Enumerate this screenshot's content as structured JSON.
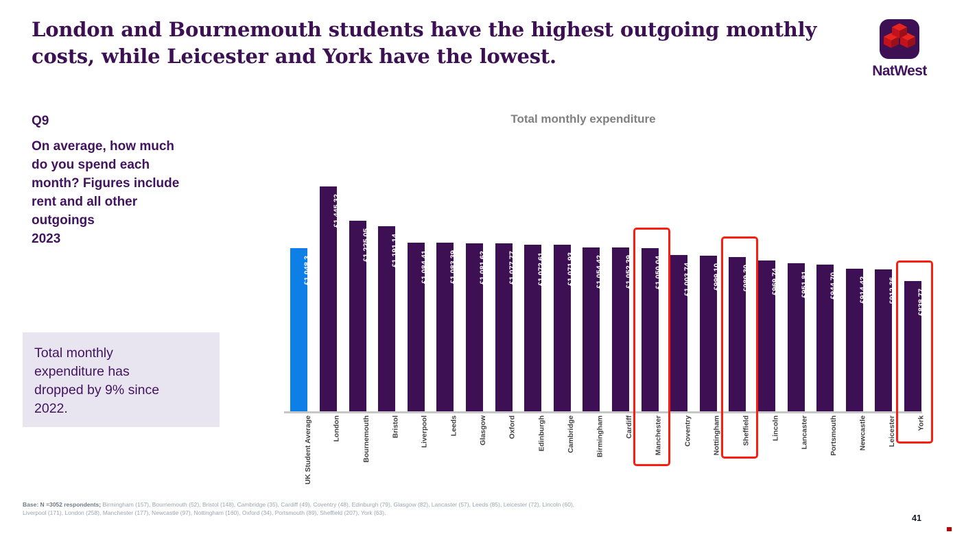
{
  "slide": {
    "title_line1": "London and Bournemouth students have the highest outgoing monthly",
    "title_line2": "costs, while Leicester and York have the lowest.",
    "page_number": "41"
  },
  "logo": {
    "brand": "NatWest",
    "bg_purple": "#3C1053",
    "cube_top_red": "#E8241F",
    "cube_left_red": "#C4121C",
    "cube_right_red": "#99101A",
    "text_purple": "#42145F"
  },
  "question": {
    "label": "Q9",
    "text": "On average, how much do you spend each month? Figures include rent and all other outgoings",
    "year": "2023"
  },
  "callout": {
    "text": "Total monthly expenditure has dropped by 9% since 2022.",
    "bg_color": "#E9E5F0"
  },
  "chart_data": {
    "type": "bar",
    "title": "Total monthly expenditure",
    "categories": [
      "UK Student Average",
      "London",
      "Bournemouth",
      "Bristol",
      "Liverpool",
      "Leeds",
      "Glasgow",
      "Oxford",
      "Edinburgh",
      "Cambridge",
      "Birmingham",
      "Cardiff",
      "Manchester",
      "Coventry",
      "Nottingham",
      "Sheffield",
      "Lincoln",
      "Lancaster",
      "Portsmouth",
      "Newcastle",
      "Leicester",
      "York"
    ],
    "values": [
      1048.3,
      1445.32,
      1225.05,
      1191.14,
      1084.41,
      1083.39,
      1081.62,
      1077.77,
      1072.61,
      1071.93,
      1054.42,
      1052.39,
      1050.04,
      1003.74,
      999.1,
      989.3,
      969.74,
      951.81,
      944.7,
      914.42,
      912.36,
      838.77
    ],
    "value_labels": [
      "£1,048.3",
      "£1,445.32",
      "£1,225.05",
      "£1,191.14",
      "£1,084.41",
      "£1,083.39",
      "£1,081.62",
      "£1,077.77",
      "£1,072.61",
      "£1,071.93",
      "£1,054.42",
      "£1,052.39",
      "£1,050.04",
      "£1,003.74",
      "£999.10",
      "£989.30",
      "£969.74",
      "£951.81",
      "£944.70",
      "£914.42",
      "£912.36",
      "£838.77"
    ],
    "xlabel": "",
    "ylabel": "",
    "ylim": [
      0,
      1500
    ],
    "gridlines": false,
    "y_axis_visible": false,
    "legend": false,
    "bar_color": "#3C1053",
    "uk_average_color": "#0F7FE8",
    "axis_color": "#C6C6C6",
    "highlighted_categories": [
      "Manchester",
      "Sheffield",
      "York"
    ],
    "highlight_box_color": "#FA1E10"
  },
  "footnote": {
    "base": "Base: N =3052 respondents;",
    "line1": " Birmingham (157),  Bournemouth (52), Bristol (148), Cambridge (35), Cardiff (49), Coventry (48),  Edinburgh (79), Glasgow (82), Lancaster (57), Leeds (85), Leicester (72), Lincoln (60),",
    "line2": "Liverpool (171), London (258), Manchester (177), Newcastle (97), Nottingham (160), Oxford (34), Portsmouth (89), Sheffield (207), York (63)."
  }
}
